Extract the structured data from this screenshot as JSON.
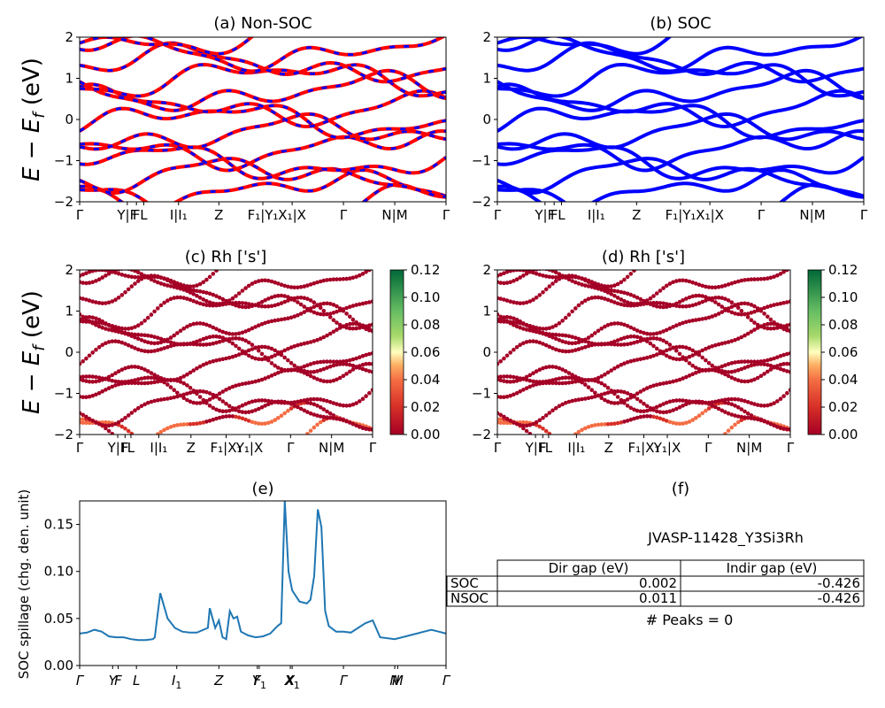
{
  "colors": {
    "nonsoc_up": "#ff0000",
    "nonsoc_dn": "#0000ff",
    "soc": "#0000ff",
    "spillage": "#1f77b4",
    "axis": "#000000"
  },
  "band_ticks": [
    "Γ",
    "Y|F",
    "F",
    "L",
    "I|I₁",
    "Z",
    "F₁|Y₁",
    "X₁|X",
    "Γ",
    "N|M",
    "Γ"
  ],
  "chart_data": [
    {
      "id": "a",
      "type": "line",
      "title": "(a) Non-SOC",
      "ylabel": "E − E_f (eV)",
      "ylim": [
        -2,
        2
      ],
      "yticks": [
        "2",
        "1",
        "0",
        "−1",
        "−2"
      ],
      "x_ticks": [
        "Γ",
        "Y|F",
        "F",
        "L",
        "I|I₁",
        "Z",
        "F₁|Y₁",
        "X₁|X",
        "Γ",
        "N|M",
        "Γ"
      ],
      "series": [
        {
          "x": [
            0,
            0.05,
            0.1,
            0.15,
            0.2,
            0.25,
            0.3,
            0.35,
            0.4,
            0.45,
            0.5,
            0.55,
            0.6,
            0.65,
            0.7,
            0.75,
            0.8,
            0.85,
            0.9,
            0.95,
            1.0
          ],
          "y": [
            -1.8,
            -1.7,
            -1.5,
            -1.6,
            -1.75,
            -1.6,
            -1.4,
            -1.55,
            -1.7,
            -1.5,
            -1.3,
            -1.45,
            -1.6,
            -1.5,
            -1.35,
            -1.5,
            -1.65,
            -1.5,
            -1.7,
            -1.75,
            -1.8
          ]
        },
        {
          "x": [
            0,
            0.05,
            0.1,
            0.15,
            0.2,
            0.25,
            0.3,
            0.35,
            0.4,
            0.45,
            0.5,
            0.55,
            0.6,
            0.65,
            0.7,
            0.75,
            0.8,
            0.85,
            0.9,
            0.95,
            1.0
          ],
          "y": [
            -1.2,
            -1.1,
            -0.95,
            -1.0,
            -1.25,
            -1.1,
            -0.85,
            -1.0,
            -1.2,
            -1.0,
            -0.8,
            -0.95,
            -1.15,
            -1.0,
            -0.85,
            -1.0,
            -1.2,
            -1.05,
            -1.15,
            -1.2,
            -1.2
          ]
        },
        {
          "x": [
            0,
            0.05,
            0.1,
            0.15,
            0.2,
            0.25,
            0.3,
            0.35,
            0.4,
            0.45,
            0.5,
            0.55,
            0.6,
            0.65,
            0.7,
            0.75,
            0.8,
            0.85,
            0.9,
            0.95,
            1.0
          ],
          "y": [
            -0.7,
            -0.6,
            -0.45,
            -0.55,
            -0.75,
            -0.6,
            -0.35,
            -0.5,
            -0.7,
            -0.5,
            -0.3,
            -0.45,
            -0.65,
            -0.5,
            -0.35,
            -0.5,
            -0.7,
            -0.55,
            -0.65,
            -0.7,
            -0.7
          ]
        },
        {
          "x": [
            0,
            0.05,
            0.1,
            0.15,
            0.2,
            0.25,
            0.3,
            0.35,
            0.4,
            0.45,
            0.5,
            0.55,
            0.6,
            0.65,
            0.7,
            0.75,
            0.8,
            0.85,
            0.9,
            0.95,
            1.0
          ],
          "y": [
            -0.2,
            -0.1,
            0.05,
            -0.05,
            -0.25,
            -0.1,
            0.15,
            0.0,
            -0.2,
            0.0,
            0.2,
            0.05,
            -0.15,
            0.0,
            0.15,
            0.0,
            -0.2,
            -0.05,
            -0.15,
            -0.2,
            -0.2
          ]
        },
        {
          "x": [
            0,
            0.05,
            0.1,
            0.15,
            0.2,
            0.25,
            0.3,
            0.35,
            0.4,
            0.45,
            0.5,
            0.55,
            0.6,
            0.65,
            0.7,
            0.75,
            0.8,
            0.85,
            0.9,
            0.95,
            1.0
          ],
          "y": [
            0.3,
            0.4,
            0.55,
            0.45,
            0.25,
            0.4,
            0.65,
            0.5,
            0.3,
            0.5,
            0.7,
            0.55,
            0.35,
            0.5,
            0.65,
            0.5,
            0.3,
            0.45,
            0.35,
            0.3,
            0.3
          ]
        },
        {
          "x": [
            0,
            0.05,
            0.1,
            0.15,
            0.2,
            0.25,
            0.3,
            0.35,
            0.4,
            0.45,
            0.5,
            0.55,
            0.6,
            0.65,
            0.7,
            0.75,
            0.8,
            0.85,
            0.9,
            0.95,
            1.0
          ],
          "y": [
            0.8,
            0.9,
            1.05,
            0.95,
            0.75,
            0.9,
            1.15,
            1.0,
            0.8,
            1.0,
            1.2,
            1.05,
            0.85,
            1.0,
            1.15,
            1.0,
            0.8,
            0.95,
            0.85,
            0.8,
            0.8
          ]
        },
        {
          "x": [
            0,
            0.05,
            0.1,
            0.15,
            0.2,
            0.25,
            0.3,
            0.35,
            0.4,
            0.45,
            0.5,
            0.55,
            0.6,
            0.65,
            0.7,
            0.75,
            0.8,
            0.85,
            0.9,
            0.95,
            1.0
          ],
          "y": [
            1.3,
            1.4,
            1.55,
            1.45,
            1.25,
            1.4,
            1.65,
            1.5,
            1.3,
            1.5,
            1.7,
            1.55,
            1.35,
            1.5,
            1.65,
            1.5,
            1.3,
            1.45,
            1.35,
            1.3,
            1.3
          ]
        },
        {
          "x": [
            0,
            0.05,
            0.1,
            0.15,
            0.2,
            0.25,
            0.3,
            0.35,
            0.4,
            0.45,
            0.5,
            0.55,
            0.6,
            0.65,
            0.7,
            0.75,
            0.8,
            0.85,
            0.9,
            0.95,
            1.0
          ],
          "y": [
            1.8,
            1.9,
            2.0,
            1.95,
            1.75,
            1.9,
            2.0,
            2.0,
            1.8,
            2.0,
            2.0,
            2.0,
            1.85,
            2.0,
            2.0,
            2.0,
            1.8,
            1.95,
            1.85,
            1.8,
            1.8
          ]
        }
      ]
    },
    {
      "id": "b",
      "type": "line",
      "title": "(b) SOC",
      "ylabel": "",
      "ylim": [
        -2,
        2
      ],
      "yticks": [
        "2",
        "1",
        "0",
        "−1",
        "−2"
      ],
      "x_ticks": [
        "Γ",
        "Y|F",
        "F",
        "L",
        "I|I₁",
        "Z",
        "F₁|Y₁",
        "X₁|X",
        "Γ",
        "N|M",
        "Γ"
      ]
    },
    {
      "id": "c",
      "type": "scatter",
      "title": "(c)  Rh ['s']",
      "ylabel": "E − E_f (eV)",
      "ylim": [
        -2,
        2
      ],
      "yticks": [
        "2",
        "1",
        "0",
        "−1",
        "−2"
      ],
      "colorbar_ticks": [
        "0.12",
        "0.10",
        "0.08",
        "0.06",
        "0.04",
        "0.02",
        "0.00"
      ],
      "colorbar_range": [
        0.0,
        0.12
      ],
      "x_ticks": [
        "Γ",
        "Y|F",
        "F",
        "L",
        "I|I₁",
        "Z",
        "F₁|X₁",
        "Y₁|X",
        "Γ",
        "N|M",
        "Γ"
      ]
    },
    {
      "id": "d",
      "type": "scatter",
      "title": "(d) Rh ['s']",
      "ylabel": "",
      "ylim": [
        -2,
        2
      ],
      "yticks": [
        "2",
        "1",
        "0",
        "−1",
        "−2"
      ],
      "colorbar_ticks": [
        "0.12",
        "0.10",
        "0.08",
        "0.06",
        "0.04",
        "0.02",
        "0.00"
      ],
      "colorbar_range": [
        0.0,
        0.12
      ],
      "x_ticks": [
        "Γ",
        "Y|F",
        "F",
        "L",
        "I|I₁",
        "Z",
        "F₁|X₁",
        "Y₁|X",
        "Γ",
        "N|M",
        "Γ"
      ]
    },
    {
      "id": "e",
      "type": "line",
      "title": "(e)",
      "ylabel": "SOC spillage (chg. den. unit)",
      "ylim": [
        0.0,
        0.175
      ],
      "yticks": [
        "0.00",
        "0.05",
        "0.10",
        "0.15"
      ],
      "x_ticks": [
        "Γ",
        "Y",
        "F",
        "L",
        "I",
        "Z",
        "F",
        "Y",
        "X",
        "X",
        "Γ",
        "N",
        "M",
        "Γ"
      ],
      "x_ticks_sub": [
        "",
        "",
        "",
        "",
        "1",
        "",
        "",
        "1",
        "",
        "1",
        "",
        "",
        "",
        ""
      ],
      "x": [
        0,
        0.02,
        0.04,
        0.06,
        0.08,
        0.1,
        0.12,
        0.14,
        0.16,
        0.18,
        0.2,
        0.205,
        0.22,
        0.24,
        0.26,
        0.28,
        0.3,
        0.32,
        0.35,
        0.355,
        0.37,
        0.38,
        0.39,
        0.4,
        0.41,
        0.42,
        0.43,
        0.44,
        0.46,
        0.48,
        0.5,
        0.52,
        0.54,
        0.55,
        0.56,
        0.57,
        0.58,
        0.6,
        0.62,
        0.63,
        0.64,
        0.65,
        0.66,
        0.67,
        0.68,
        0.7,
        0.72,
        0.74,
        0.76,
        0.78,
        0.8,
        0.82,
        0.86,
        0.9,
        0.92,
        0.94,
        0.96,
        0.98,
        1.0
      ],
      "y": [
        0.034,
        0.035,
        0.038,
        0.036,
        0.031,
        0.03,
        0.03,
        0.028,
        0.027,
        0.027,
        0.028,
        0.03,
        0.077,
        0.05,
        0.04,
        0.036,
        0.035,
        0.035,
        0.04,
        0.061,
        0.04,
        0.048,
        0.03,
        0.028,
        0.058,
        0.05,
        0.052,
        0.036,
        0.032,
        0.03,
        0.031,
        0.034,
        0.042,
        0.045,
        0.175,
        0.1,
        0.08,
        0.068,
        0.066,
        0.07,
        0.095,
        0.166,
        0.147,
        0.058,
        0.042,
        0.036,
        0.036,
        0.035,
        0.04,
        0.045,
        0.048,
        0.03,
        0.028,
        0.032,
        0.034,
        0.036,
        0.038,
        0.036,
        0.034
      ]
    },
    {
      "id": "f",
      "type": "table",
      "title": "(f)",
      "subtitle": "JVASP-11428_Y3Si3Rh",
      "columns": [
        "Dir gap (eV)",
        "Indir gap (eV)"
      ],
      "rows": [
        {
          "label": "SOC",
          "values": [
            "0.002",
            "-0.426"
          ]
        },
        {
          "label": "NSOC",
          "values": [
            "0.011",
            "-0.426"
          ]
        }
      ],
      "footer": "# Peaks = 0"
    }
  ]
}
